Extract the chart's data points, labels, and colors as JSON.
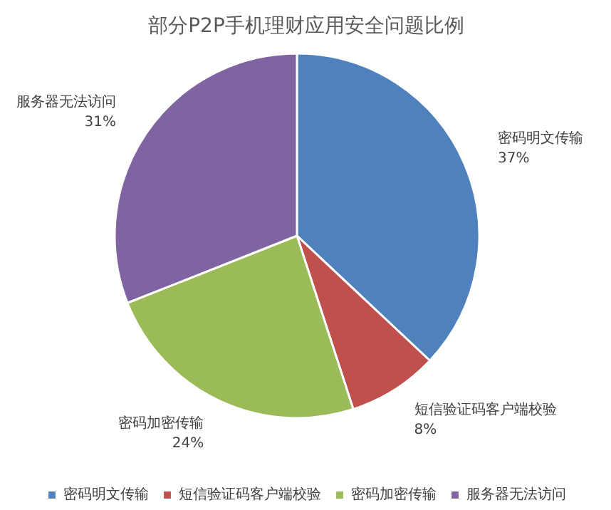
{
  "chart_data": {
    "type": "pie",
    "title": "部分P2P手机理财应用安全问题比例",
    "categories": [
      "密码明文传输",
      "短信验证码客户端校验",
      "密码加密传输",
      "服务器无法访问"
    ],
    "values": [
      37,
      8,
      24,
      31
    ],
    "value_labels": [
      "37%",
      "8%",
      "24%",
      "31%"
    ],
    "colors": [
      "#4f81bd",
      "#c0504d",
      "#9bbb59",
      "#8064a2"
    ],
    "legend": "bottom"
  }
}
